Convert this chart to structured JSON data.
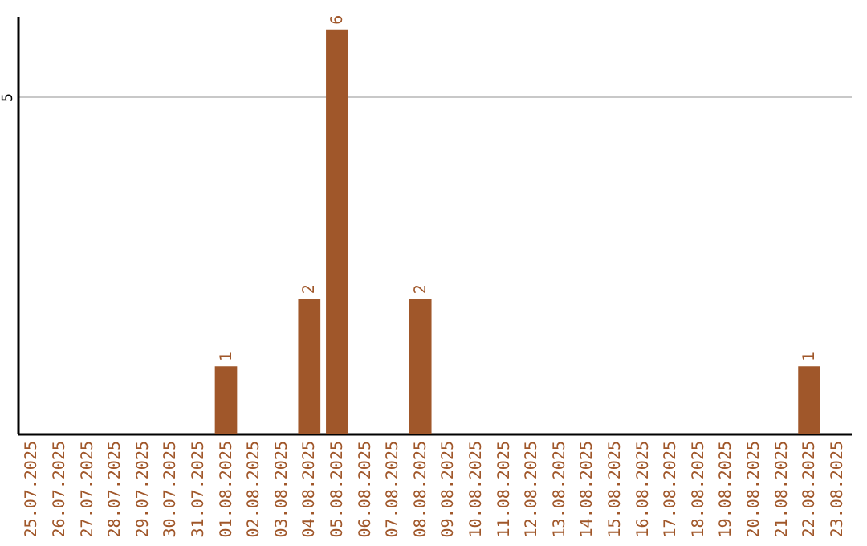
{
  "chart_data": {
    "type": "bar",
    "categories": [
      "25.07.2025",
      "26.07.2025",
      "27.07.2025",
      "28.07.2025",
      "29.07.2025",
      "30.07.2025",
      "31.07.2025",
      "01.08.2025",
      "02.08.2025",
      "03.08.2025",
      "04.08.2025",
      "05.08.2025",
      "06.08.2025",
      "07.08.2025",
      "08.08.2025",
      "09.08.2025",
      "10.08.2025",
      "11.08.2025",
      "12.08.2025",
      "13.08.2025",
      "14.08.2025",
      "15.08.2025",
      "16.08.2025",
      "17.08.2025",
      "18.08.2025",
      "19.08.2025",
      "20.08.2025",
      "21.08.2025",
      "22.08.2025",
      "23.08.2025"
    ],
    "values": [
      0,
      0,
      0,
      0,
      0,
      0,
      0,
      1,
      0,
      0,
      2,
      6,
      0,
      0,
      2,
      0,
      0,
      0,
      0,
      0,
      0,
      0,
      0,
      0,
      0,
      0,
      0,
      0,
      1,
      0
    ],
    "value_labels": [
      null,
      null,
      null,
      null,
      null,
      null,
      null,
      "1",
      null,
      null,
      "2",
      "6",
      null,
      null,
      "2",
      null,
      null,
      null,
      null,
      null,
      null,
      null,
      null,
      null,
      null,
      null,
      null,
      null,
      "1",
      null
    ],
    "color": "#a0572a",
    "ylim": [
      0,
      6.2
    ],
    "yticks": [
      5
    ],
    "grid": "y"
  }
}
